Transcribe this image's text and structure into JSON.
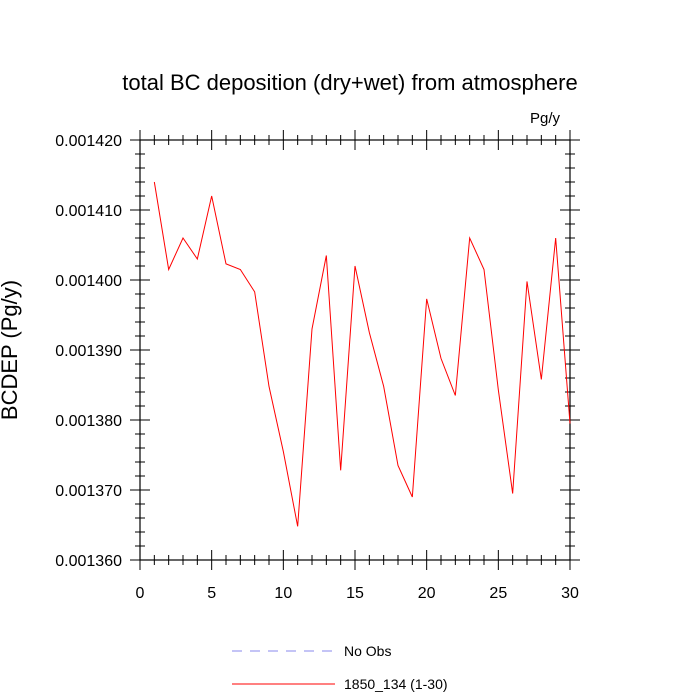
{
  "chart_data": {
    "type": "line",
    "title": "total BC deposition (dry+wet) from atmosphere",
    "units_label": "Pg/y",
    "ylabel": "BCDEP  (Pg/y)",
    "xlabel": "",
    "xlim": [
      0,
      30
    ],
    "ylim": [
      0.00136,
      0.00142
    ],
    "x_ticks": [
      0,
      5,
      10,
      15,
      20,
      25,
      30
    ],
    "x_tick_labels": [
      "0",
      "5",
      "10",
      "15",
      "20",
      "25",
      "30"
    ],
    "y_ticks": [
      0.00136,
      0.00137,
      0.00138,
      0.00139,
      0.0014,
      0.00141,
      0.00142
    ],
    "y_tick_labels": [
      "0.001360",
      "0.001370",
      "0.001380",
      "0.001390",
      "0.001400",
      "0.001410",
      "0.001420"
    ],
    "grid": false,
    "legend_position": "bottom",
    "series": [
      {
        "name": "No Obs",
        "color": "#8888ee",
        "style": "dashed",
        "x": [],
        "y": []
      },
      {
        "name": "1850_134 (1-30)",
        "color": "#ff0000",
        "style": "solid",
        "x": [
          1,
          2,
          3,
          4,
          5,
          6,
          7,
          8,
          9,
          10,
          11,
          12,
          13,
          14,
          15,
          16,
          17,
          18,
          19,
          20,
          21,
          22,
          23,
          24,
          25,
          26,
          27,
          28,
          29,
          30
        ],
        "y": [
          0.001414,
          0.0014015,
          0.001406,
          0.001403,
          0.001412,
          0.0014023,
          0.0014015,
          0.0013983,
          0.0013848,
          0.0013755,
          0.0013648,
          0.001393,
          0.0014035,
          0.0013728,
          0.001402,
          0.0013925,
          0.0013848,
          0.0013735,
          0.001369,
          0.0013973,
          0.0013888,
          0.0013835,
          0.001406,
          0.0014015,
          0.0013843,
          0.0013695,
          0.0013998,
          0.0013858,
          0.001406,
          0.0013795
        ]
      }
    ]
  }
}
